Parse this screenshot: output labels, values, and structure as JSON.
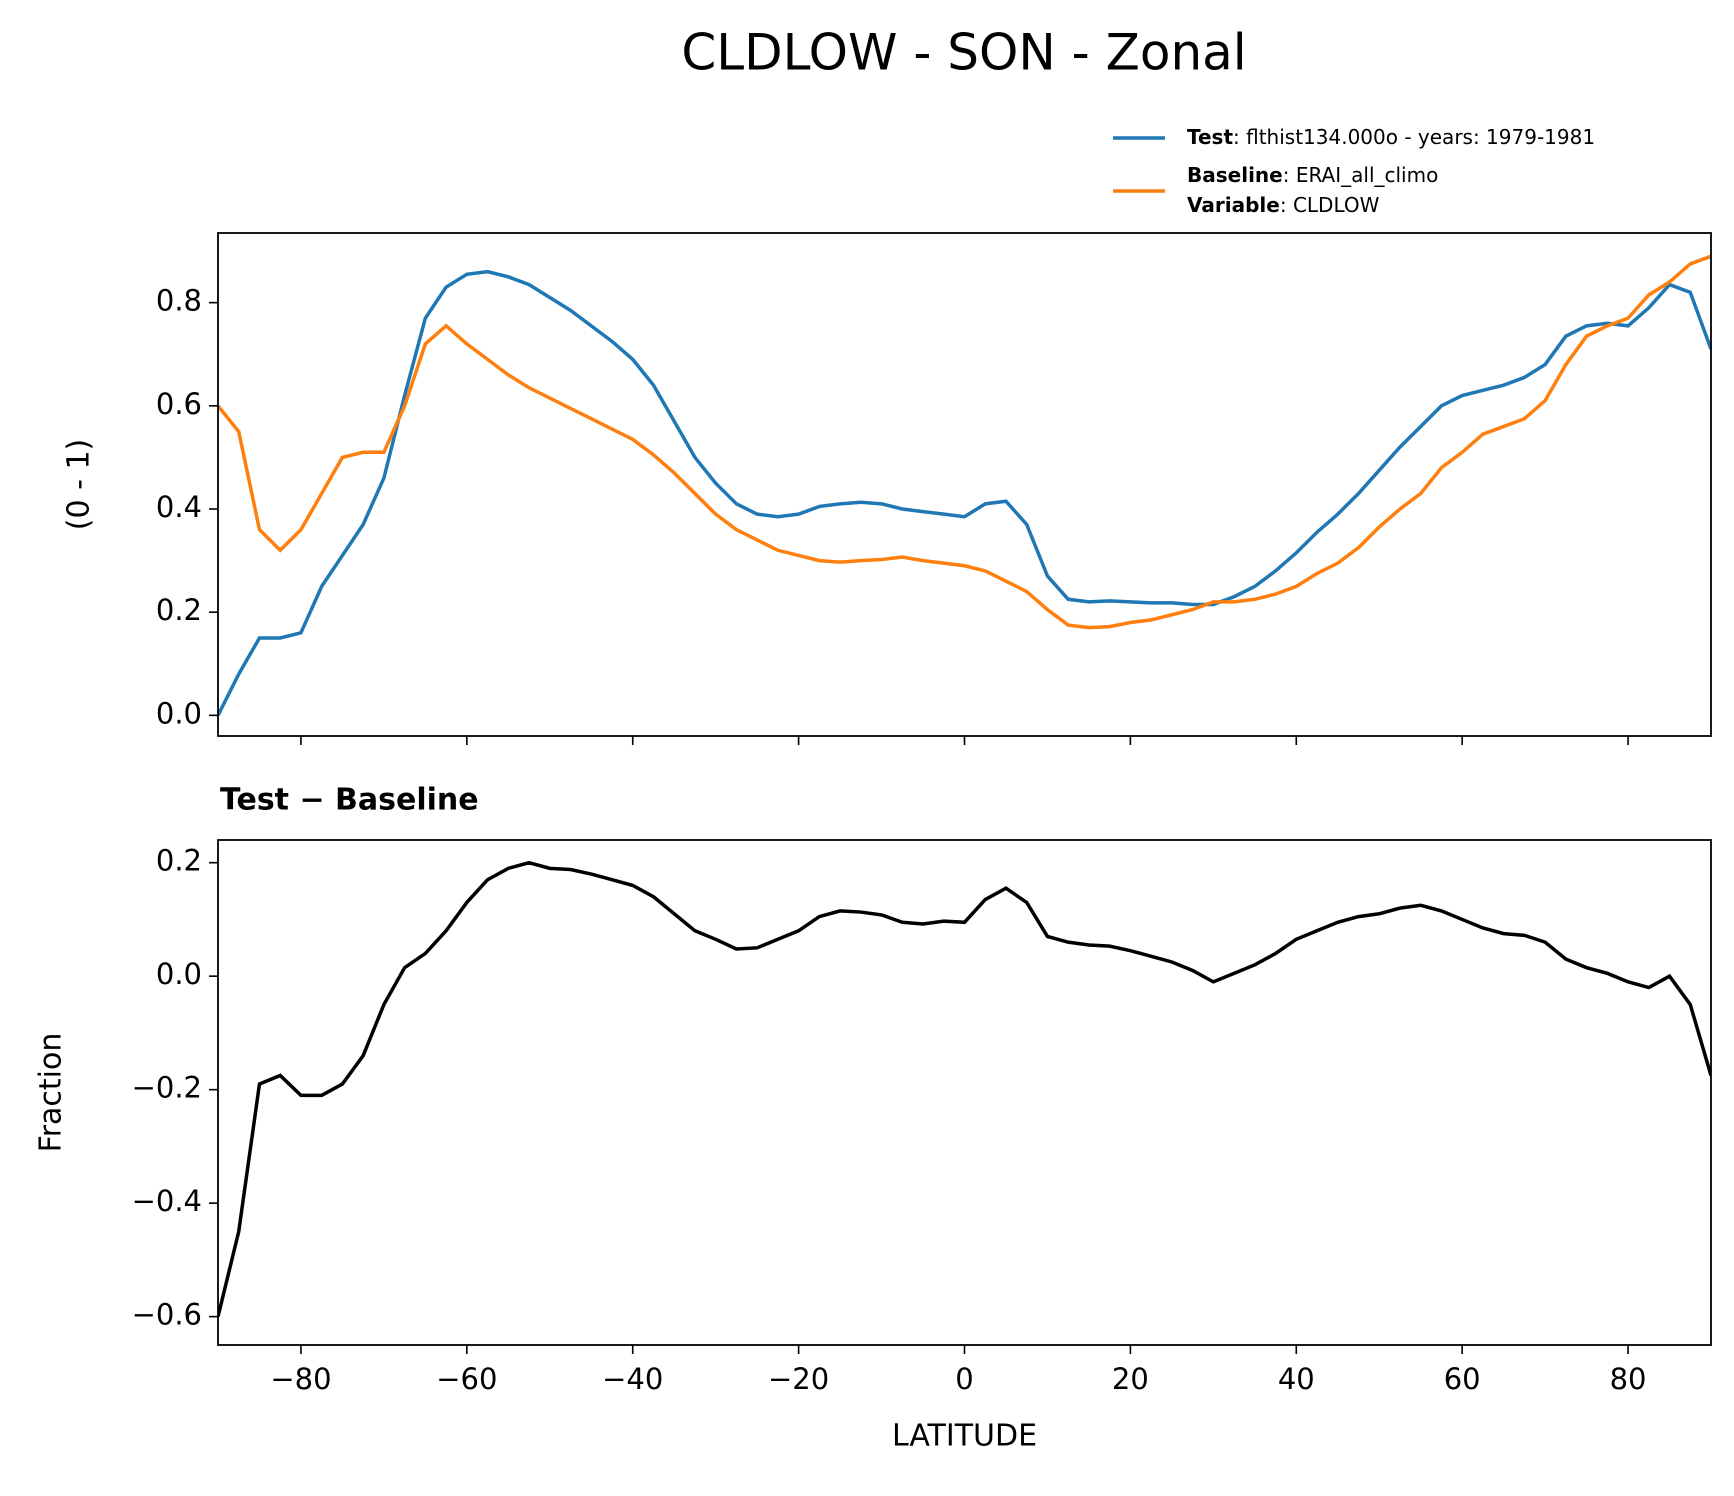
{
  "title": "CLDLOW - SON - Zonal",
  "chart_data": [
    {
      "type": "line",
      "ylabel": "(0 - 1)",
      "x": [
        -90,
        -87.5,
        -85,
        -82.5,
        -80,
        -77.5,
        -75,
        -72.5,
        -70,
        -67.5,
        -65,
        -62.5,
        -60,
        -57.5,
        -55,
        -52.5,
        -50,
        -47.5,
        -45,
        -42.5,
        -40,
        -37.5,
        -35,
        -32.5,
        -30,
        -27.5,
        -25,
        -22.5,
        -20,
        -17.5,
        -15,
        -12.5,
        -10,
        -7.5,
        -5,
        -2.5,
        0,
        2.5,
        5,
        7.5,
        10,
        12.5,
        15,
        17.5,
        20,
        22.5,
        25,
        27.5,
        30,
        32.5,
        35,
        37.5,
        40,
        42.5,
        45,
        47.5,
        50,
        52.5,
        55,
        57.5,
        60,
        62.5,
        65,
        67.5,
        70,
        72.5,
        75,
        77.5,
        80,
        82.5,
        85,
        87.5,
        90
      ],
      "series": [
        {
          "name": "Test",
          "description": ": flthist134.000o - years: 1979-1981",
          "color": "#1f77b4",
          "values": [
            0.0,
            0.08,
            0.15,
            0.15,
            0.16,
            0.25,
            0.31,
            0.37,
            0.46,
            0.62,
            0.77,
            0.83,
            0.855,
            0.86,
            0.85,
            0.835,
            0.81,
            0.785,
            0.755,
            0.725,
            0.69,
            0.64,
            0.57,
            0.5,
            0.45,
            0.41,
            0.39,
            0.385,
            0.39,
            0.405,
            0.41,
            0.413,
            0.41,
            0.4,
            0.395,
            0.39,
            0.385,
            0.41,
            0.415,
            0.37,
            0.27,
            0.225,
            0.22,
            0.222,
            0.22,
            0.218,
            0.218,
            0.215,
            0.215,
            0.23,
            0.25,
            0.28,
            0.315,
            0.355,
            0.39,
            0.43,
            0.475,
            0.52,
            0.56,
            0.6,
            0.62,
            0.63,
            0.64,
            0.655,
            0.68,
            0.735,
            0.755,
            0.76,
            0.755,
            0.79,
            0.835,
            0.82,
            0.71
          ]
        },
        {
          "name": "Baseline",
          "description": ": ERAI_all_climo",
          "color": "#ff7f0e",
          "values": [
            0.6,
            0.55,
            0.36,
            0.32,
            0.36,
            0.43,
            0.5,
            0.51,
            0.51,
            0.6,
            0.72,
            0.755,
            0.72,
            0.69,
            0.66,
            0.635,
            0.615,
            0.595,
            0.575,
            0.555,
            0.535,
            0.505,
            0.47,
            0.43,
            0.39,
            0.36,
            0.34,
            0.32,
            0.31,
            0.3,
            0.297,
            0.3,
            0.302,
            0.307,
            0.3,
            0.295,
            0.29,
            0.28,
            0.26,
            0.24,
            0.205,
            0.175,
            0.17,
            0.172,
            0.18,
            0.185,
            0.195,
            0.205,
            0.22,
            0.22,
            0.225,
            0.235,
            0.25,
            0.275,
            0.295,
            0.325,
            0.365,
            0.4,
            0.43,
            0.48,
            0.51,
            0.545,
            0.56,
            0.575,
            0.61,
            0.68,
            0.735,
            0.755,
            0.77,
            0.815,
            0.84,
            0.875,
            0.89
          ]
        }
      ],
      "legend_note": {
        "name": "Variable",
        "text": ": CLDLOW"
      },
      "xlim": [
        -90,
        90
      ],
      "xticks": [
        -80,
        -60,
        -40,
        -20,
        0,
        20,
        40,
        60,
        80
      ],
      "ylim": [
        -0.04,
        0.935
      ],
      "yticks": [
        {
          "value": 0,
          "label": "0.0"
        },
        0.2,
        0.4,
        0.6,
        0.8
      ]
    },
    {
      "type": "line",
      "title": "Test − Baseline",
      "ylabel": "Fraction",
      "xlabel": "LATITUDE",
      "x": [
        -90,
        -87.5,
        -85,
        -82.5,
        -80,
        -77.5,
        -75,
        -72.5,
        -70,
        -67.5,
        -65,
        -62.5,
        -60,
        -57.5,
        -55,
        -52.5,
        -50,
        -47.5,
        -45,
        -42.5,
        -40,
        -37.5,
        -35,
        -32.5,
        -30,
        -27.5,
        -25,
        -22.5,
        -20,
        -17.5,
        -15,
        -12.5,
        -10,
        -7.5,
        -5,
        -2.5,
        0,
        2.5,
        5,
        7.5,
        10,
        12.5,
        15,
        17.5,
        20,
        22.5,
        25,
        27.5,
        30,
        32.5,
        35,
        37.5,
        40,
        42.5,
        45,
        47.5,
        50,
        52.5,
        55,
        57.5,
        60,
        62.5,
        65,
        67.5,
        70,
        72.5,
        75,
        77.5,
        80,
        82.5,
        85,
        87.5,
        90
      ],
      "color": "#000000",
      "values": [
        -0.6,
        -0.45,
        -0.19,
        -0.175,
        -0.21,
        -0.21,
        -0.19,
        -0.14,
        -0.05,
        0.015,
        0.04,
        0.08,
        0.13,
        0.17,
        0.19,
        0.2,
        0.19,
        0.188,
        0.18,
        0.17,
        0.16,
        0.14,
        0.11,
        0.08,
        0.065,
        0.048,
        0.05,
        0.065,
        0.08,
        0.105,
        0.115,
        0.113,
        0.108,
        0.095,
        0.092,
        0.097,
        0.095,
        0.135,
        0.155,
        0.13,
        0.07,
        0.06,
        0.055,
        0.053,
        0.045,
        0.035,
        0.025,
        0.01,
        -0.01,
        0.005,
        0.02,
        0.04,
        0.065,
        0.08,
        0.095,
        0.105,
        0.11,
        0.12,
        0.125,
        0.115,
        0.1,
        0.085,
        0.075,
        0.072,
        0.06,
        0.03,
        0.015,
        0.005,
        -0.01,
        -0.02,
        0.0,
        -0.05,
        -0.175
      ],
      "xlim": [
        -90,
        90
      ],
      "xticks": [
        {
          "value": -80,
          "label": "−80"
        },
        {
          "value": -60,
          "label": "−60"
        },
        {
          "value": -40,
          "label": "−40"
        },
        {
          "value": -20,
          "label": "−20"
        },
        0,
        20,
        40,
        60,
        80
      ],
      "ylim": [
        -0.65,
        0.24
      ],
      "yticks": [
        {
          "value": -0.6,
          "label": "−0.6"
        },
        {
          "value": -0.4,
          "label": "−0.4"
        },
        {
          "value": -0.2,
          "label": "−0.2"
        },
        {
          "value": 0,
          "label": "0.0"
        },
        0.2
      ]
    }
  ]
}
